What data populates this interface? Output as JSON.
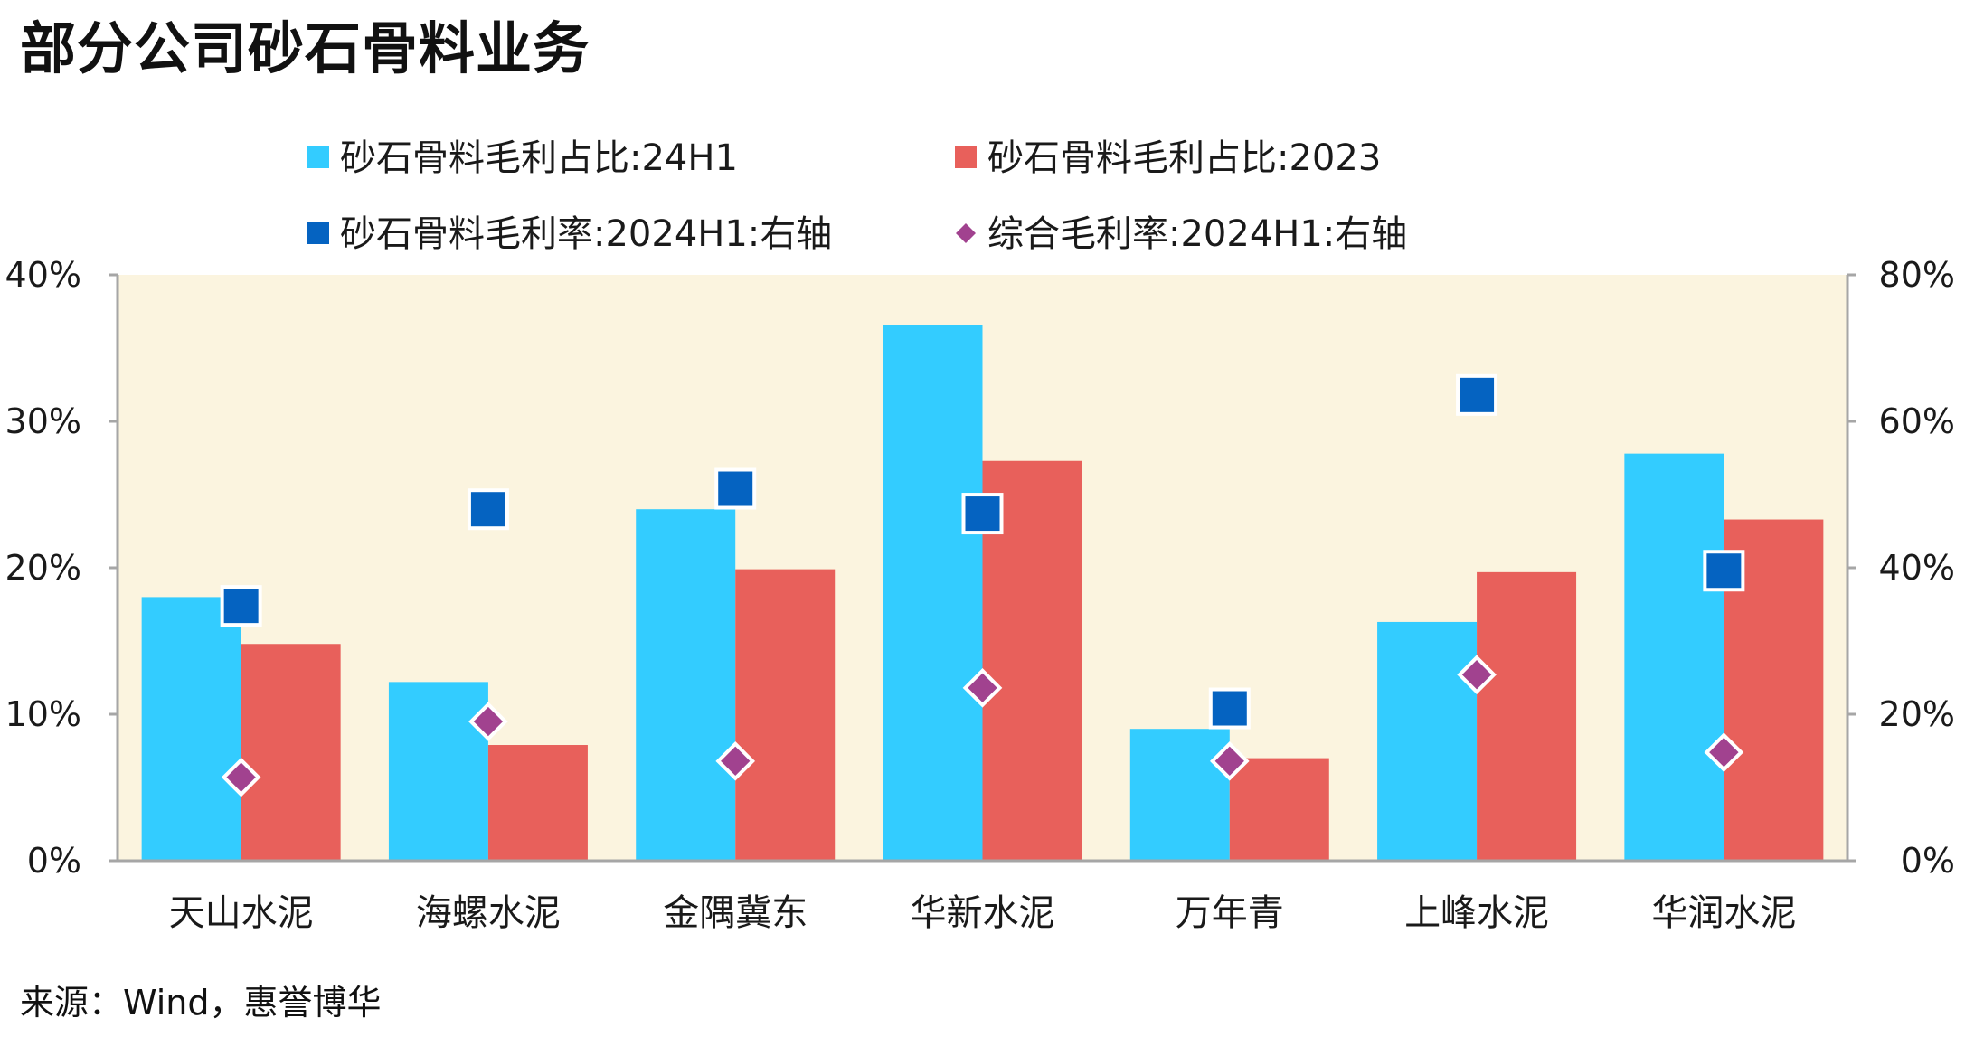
{
  "title": "部分公司砂石骨料业务",
  "source": "来源：Wind，惠誉博华",
  "colors": {
    "plot_background": "#FBF4DF",
    "axis": "#A6A6A6",
    "bar_24h1": "#33CCFF",
    "bar_2023": "#E8605B",
    "square_marker": "#0563C1",
    "diamond_marker": "#A1428F"
  },
  "chart_data": {
    "type": "bar",
    "title": "部分公司砂石骨料业务",
    "categories": [
      "天山水泥",
      "海螺水泥",
      "金隅冀东",
      "华新水泥",
      "万年青",
      "上峰水泥",
      "华润水泥"
    ],
    "left_axis": {
      "ylim": [
        0,
        0.4
      ],
      "ticks": [
        0,
        0.1,
        0.2,
        0.3,
        0.4
      ],
      "tick_labels": [
        "0%",
        "10%",
        "20%",
        "30%",
        "40%"
      ]
    },
    "right_axis": {
      "ylim": [
        0,
        0.8
      ],
      "ticks": [
        0,
        0.2,
        0.4,
        0.6,
        0.8
      ],
      "tick_labels": [
        "0%",
        "20%",
        "40%",
        "60%",
        "80%"
      ]
    },
    "legend_position": "top",
    "grid": false,
    "series": [
      {
        "name": "砂石骨料毛利占比:24H1",
        "kind": "bar",
        "axis": "left",
        "color": "#33CCFF",
        "values": [
          0.18,
          0.122,
          0.24,
          0.366,
          0.09,
          0.163,
          0.278
        ]
      },
      {
        "name": "砂石骨料毛利占比:2023",
        "kind": "bar",
        "axis": "left",
        "color": "#E8605B",
        "values": [
          0.148,
          0.079,
          0.199,
          0.273,
          0.07,
          0.197,
          0.233
        ]
      },
      {
        "name": "砂石骨料毛利率:2024H1:右轴",
        "kind": "square",
        "axis": "right",
        "color": "#0563C1",
        "values": [
          0.348,
          0.48,
          0.508,
          0.474,
          0.208,
          0.636,
          0.396
        ]
      },
      {
        "name": "综合毛利率:2024H1:右轴",
        "kind": "diamond",
        "axis": "right",
        "color": "#A1428F",
        "values": [
          0.114,
          0.19,
          0.136,
          0.236,
          0.136,
          0.254,
          0.148
        ]
      }
    ]
  }
}
